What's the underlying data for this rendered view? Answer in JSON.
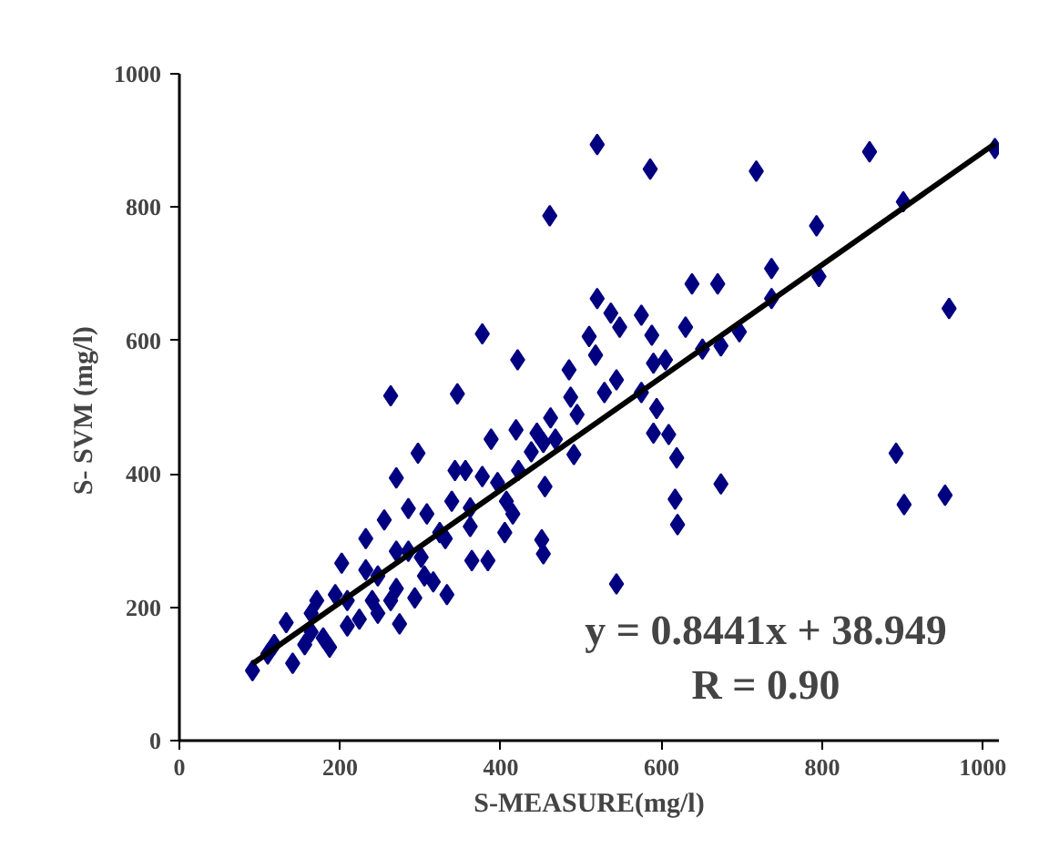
{
  "chart_data": {
    "type": "scatter",
    "xlabel": "S-MEASURE(mg/l)",
    "ylabel": "S- SVM  (mg/l)",
    "xlim": [
      0,
      1020
    ],
    "ylim": [
      0,
      1000
    ],
    "xticks": [
      0,
      200,
      400,
      600,
      800,
      1000
    ],
    "yticks": [
      0,
      200,
      400,
      600,
      800,
      1000
    ],
    "grid": false,
    "marker": "diamond",
    "annotations": [
      "y = 0.8441x + 38.949",
      "R = 0.90"
    ],
    "series": [
      {
        "color": "#000080",
        "x": [
          520,
          586,
          718,
          859,
          1015,
          901,
          461,
          793,
          737,
          796,
          958,
          638,
          670,
          520,
          537,
          575,
          737,
          697,
          674,
          651,
          630,
          377,
          421,
          263,
          346,
          485,
          510,
          518,
          548,
          588,
          590,
          605,
          544,
          529,
          575,
          594,
          590,
          609,
          619,
          487,
          495,
          462,
          419,
          445,
          468,
          491,
          892,
          674,
          617,
          620,
          902,
          953,
          544,
          455,
          451,
          453,
          415,
          405,
          388,
          356,
          343,
          297,
          270,
          333,
          384,
          364,
          305,
          293,
          274,
          285,
          255,
          232,
          202,
          224,
          187,
          133,
          91,
          118,
          141,
          164,
          209,
          247,
          285,
          324,
          362,
          396,
          377,
          339,
          308,
          270,
          232,
          194,
          164,
          156,
          179,
          240,
          270,
          301,
          331,
          362,
          407,
          422,
          438,
          453,
          247,
          209,
          263,
          316,
          171,
          110
        ],
        "values": [
          894,
          857,
          854,
          883,
          888,
          808,
          787,
          772,
          708,
          696,
          648,
          685,
          685,
          663,
          641,
          638,
          663,
          613,
          592,
          587,
          620,
          610,
          571,
          517,
          520,
          556,
          606,
          578,
          620,
          608,
          566,
          571,
          541,
          522,
          522,
          498,
          461,
          459,
          424,
          515,
          489,
          484,
          466,
          461,
          452,
          429,
          431,
          385,
          362,
          324,
          354,
          368,
          235,
          381,
          301,
          280,
          340,
          312,
          452,
          405,
          405,
          431,
          394,
          219,
          270,
          270,
          247,
          214,
          175,
          348,
          331,
          303,
          266,
          182,
          140,
          177,
          105,
          144,
          116,
          163,
          210,
          247,
          284,
          312,
          349,
          387,
          396,
          359,
          340,
          284,
          256,
          219,
          191,
          144,
          154,
          210,
          228,
          275,
          303,
          321,
          359,
          405,
          433,
          447,
          191,
          172,
          210,
          238,
          210,
          130
        ]
      },
      {
        "type": "line",
        "marker": "none",
        "color": "#000000",
        "x": [
          91,
          1016
        ],
        "values": [
          115,
          896
        ]
      }
    ]
  }
}
